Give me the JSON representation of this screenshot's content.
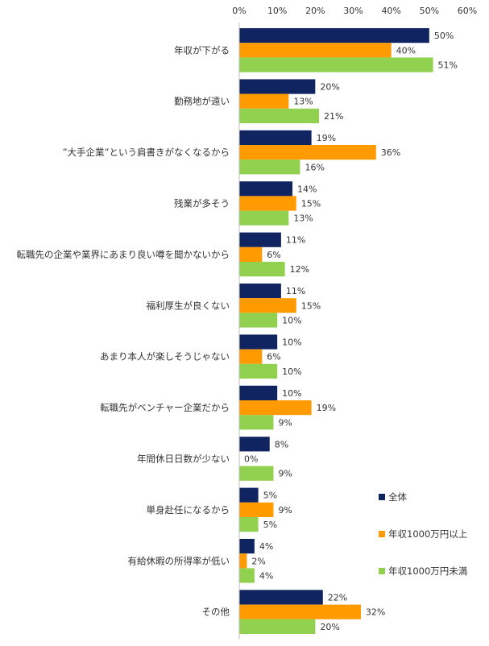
{
  "chart_data": {
    "type": "bar",
    "orientation": "horizontal",
    "title": "",
    "xlabel": "",
    "ylabel": "",
    "xlim": [
      0,
      60
    ],
    "ticks": [
      0,
      10,
      20,
      30,
      40,
      50,
      60
    ],
    "tick_labels": [
      "0%",
      "10%",
      "20%",
      "30%",
      "40%",
      "50%",
      "60%"
    ],
    "grid": false,
    "legend_position": "bottom-right",
    "categories": [
      "年収が下がる",
      "勤務地が遠い",
      "”大手企業”という肩書きがなくなるから",
      "残業が多そう",
      "転職先の企業や業界にあまり良い噂を聞かないから",
      "福利厚生が良くない",
      "あまり本人が楽しそうじゃない",
      "転職先がベンチャー企業だから",
      "年間休日日数が少ない",
      "単身赴任になるから",
      "有給休暇の所得率が低い",
      "その他"
    ],
    "series": [
      {
        "name": "全体",
        "color": "#0f2460",
        "values": [
          50,
          20,
          19,
          14,
          11,
          11,
          10,
          10,
          8,
          5,
          4,
          22
        ],
        "labels": [
          "50%",
          "20%",
          "19%",
          "14%",
          "11%",
          "11%",
          "10%",
          "10%",
          "8%",
          "5%",
          "4%",
          "22%"
        ]
      },
      {
        "name": "年収1000万円以上",
        "color": "#ff9a00",
        "values": [
          40,
          13,
          36,
          15,
          6,
          15,
          6,
          19,
          0,
          9,
          2,
          32
        ],
        "labels": [
          "40%",
          "13%",
          "36%",
          "15%",
          "6%",
          "15%",
          "6%",
          "19%",
          "0%",
          "9%",
          "2%",
          "32%"
        ]
      },
      {
        "name": "年収1000万円未満",
        "color": "#92d050",
        "values": [
          51,
          21,
          16,
          13,
          12,
          10,
          10,
          9,
          9,
          5,
          4,
          20
        ],
        "labels": [
          "51%",
          "21%",
          "16%",
          "13%",
          "12%",
          "10%",
          "10%",
          "9%",
          "9%",
          "5%",
          "4%",
          "20%"
        ]
      }
    ]
  }
}
